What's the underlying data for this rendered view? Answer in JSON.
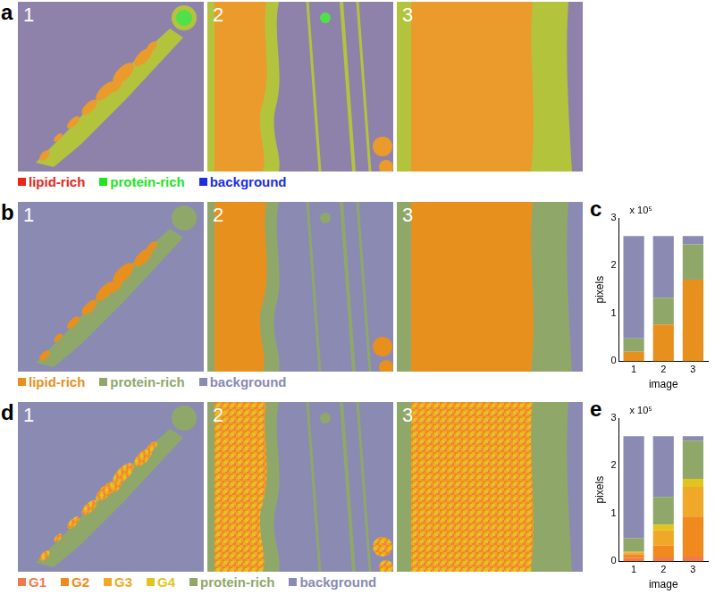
{
  "panels": [
    {
      "letter": "a",
      "images": [
        "1",
        "2",
        "3"
      ],
      "style": "raw",
      "legend": [
        {
          "name": "lipid-rich",
          "color": "#e8261a"
        },
        {
          "name": "protein-rich",
          "color": "#1ee61e"
        },
        {
          "name": "background",
          "color": "#1a2ee6"
        }
      ]
    },
    {
      "letter": "b",
      "images": [
        "1",
        "2",
        "3"
      ],
      "style": "classes",
      "legend": [
        {
          "name": "lipid-rich",
          "color": "#e8901e"
        },
        {
          "name": "protein-rich",
          "color": "#8fa86a"
        },
        {
          "name": "background",
          "color": "#8a8ab3"
        }
      ]
    },
    {
      "letter": "d",
      "images": [
        "1",
        "2",
        "3"
      ],
      "style": "subclasses",
      "legend": [
        {
          "name": "G1",
          "color": "#f07a50"
        },
        {
          "name": "G2",
          "color": "#f08a1e"
        },
        {
          "name": "G3",
          "color": "#f0a828"
        },
        {
          "name": "G4",
          "color": "#e2c420"
        },
        {
          "name": "protein-rich",
          "color": "#8fa86a"
        },
        {
          "name": "background",
          "color": "#8a8ab3"
        }
      ]
    }
  ],
  "chart_data": [
    {
      "letter": "c",
      "type": "bar",
      "stacked": true,
      "grid": false,
      "x_label": "image",
      "y_label": "pixels",
      "multiplier": "x 10⁵",
      "categories": [
        "1",
        "2",
        "3"
      ],
      "ylim": [
        0,
        3
      ],
      "yticks": [
        0,
        1,
        2,
        3
      ],
      "series": [
        {
          "name": "lipid-rich",
          "color": "#e8901e",
          "values": [
            0.2,
            0.77,
            1.71
          ]
        },
        {
          "name": "protein-rich",
          "color": "#8fa86a",
          "values": [
            0.28,
            0.56,
            0.74
          ]
        },
        {
          "name": "background",
          "color": "#8a8ab3",
          "values": [
            2.14,
            1.29,
            0.17
          ]
        }
      ]
    },
    {
      "letter": "e",
      "type": "bar",
      "stacked": true,
      "grid": false,
      "x_label": "image",
      "y_label": "pixels",
      "multiplier": "x 10⁵",
      "categories": [
        "1",
        "2",
        "3"
      ],
      "ylim": [
        0,
        3
      ],
      "yticks": [
        0,
        1,
        2,
        3
      ],
      "series": [
        {
          "name": "G1",
          "color": "#f07a50",
          "values": [
            0.07,
            0.08,
            0.1
          ]
        },
        {
          "name": "G2",
          "color": "#f08a1e",
          "values": [
            0.08,
            0.25,
            0.84
          ]
        },
        {
          "name": "G3",
          "color": "#f0a828",
          "values": [
            0.04,
            0.32,
            0.62
          ]
        },
        {
          "name": "G4",
          "color": "#e2c420",
          "values": [
            0.01,
            0.12,
            0.17
          ]
        },
        {
          "name": "protein-rich",
          "color": "#8fa86a",
          "values": [
            0.29,
            0.58,
            0.8
          ]
        },
        {
          "name": "background",
          "color": "#8a8ab3",
          "values": [
            2.13,
            1.27,
            0.09
          ]
        }
      ]
    }
  ]
}
